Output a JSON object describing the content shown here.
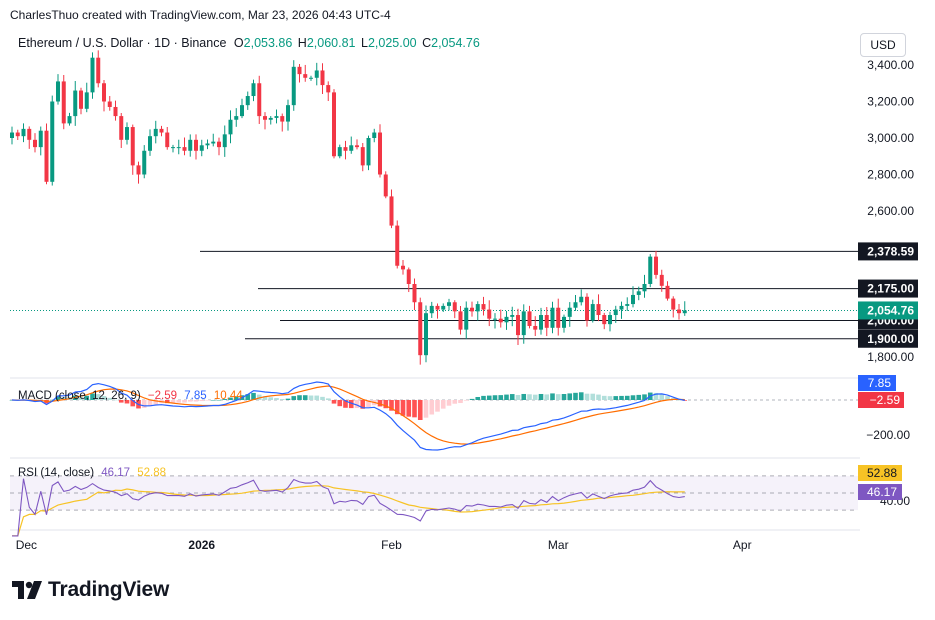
{
  "credit": "CharlesThuo created with TradingView.com, Mar 23, 2026 04:43 UTC-4",
  "header": {
    "symbol": "Ethereum / U.S. Dollar · 1D · Binance",
    "o_label": "O",
    "o_value": "2,053.86",
    "h_label": "H",
    "h_value": "2,060.81",
    "l_label": "L",
    "l_value": "2,025.00",
    "c_label": "C",
    "c_value": "2,054.76"
  },
  "currency_button": "USD",
  "price_axis_ticks": [
    "3,400.00",
    "3,200.00",
    "3,000.00",
    "2,800.00",
    "2,600.00",
    "1,800.00"
  ],
  "time_axis_ticks": [
    "Dec",
    "2026",
    "Feb",
    "Mar",
    "Apr"
  ],
  "horizontal_levels": [
    {
      "label": "2,378.59"
    },
    {
      "label": "2,175.00"
    },
    {
      "label": "2,000.00"
    },
    {
      "label": "1,900.00"
    }
  ],
  "current_price_label": "2,054.76",
  "macd": {
    "label": "MACD (close, 12, 26, 9)",
    "histogram_value": "−2.59",
    "macd_value": "7.85",
    "signal_value": "10.44",
    "axis_tick": "−200.00",
    "badge_macd": "7.85",
    "badge_hist": "−2.59"
  },
  "rsi": {
    "label": "RSI (14, close)",
    "rsi_value": "46.17",
    "ma_value": "52.88",
    "axis_tick": "40.00",
    "badge_ma": "52.88",
    "badge_rsi": "46.17"
  },
  "brand": "TradingView",
  "colors": {
    "up": "#089981",
    "down": "#f23645",
    "macd": "#2962ff",
    "signal": "#ff6d00",
    "rsi": "#7e57c2",
    "rsi_ma": "#f7c325",
    "badge_dark": "#131722"
  },
  "chart_data": {
    "type": "candlestick",
    "title": "Ethereum / U.S. Dollar · 1D · Binance",
    "ylim": [
      1750,
      3470
    ],
    "closes": [
      3030,
      3010,
      3050,
      2990,
      2950,
      3040,
      2760,
      3200,
      3310,
      3080,
      3120,
      3260,
      3160,
      3250,
      3440,
      3300,
      3200,
      3170,
      3120,
      2990,
      3060,
      2850,
      2800,
      2930,
      3010,
      3050,
      3030,
      2950,
      2950,
      2950,
      2930,
      2990,
      2930,
      2960,
      2970,
      2980,
      2950,
      3020,
      3100,
      3120,
      3180,
      3230,
      3300,
      3120,
      3100,
      3110,
      3120,
      3090,
      3180,
      3390,
      3350,
      3330,
      3330,
      3370,
      3290,
      3250,
      2900,
      2950,
      2930,
      2960,
      2950,
      2850,
      3000,
      3030,
      2800,
      2680,
      2520,
      2300,
      2280,
      2200,
      2100,
      1810,
      2040,
      2080,
      2060,
      2080,
      2100,
      2050,
      1950,
      2070,
      2050,
      2090,
      2060,
      2010,
      2010,
      1990,
      2020,
      2030,
      1920,
      2050,
      1970,
      1950,
      2030,
      1960,
      2070,
      1960,
      2020,
      2070,
      2100,
      2130,
      2000,
      2090,
      2030,
      1980,
      2030,
      2060,
      2080,
      2090,
      2140,
      2160,
      2200,
      2350,
      2250,
      2190,
      2120,
      2060,
      2040,
      2055
    ],
    "levels": [
      2378.59,
      2175.0,
      2000.0,
      1900.0
    ],
    "macd_last": {
      "histogram": -2.59,
      "macd": 7.85,
      "signal": 10.44
    },
    "rsi_last": {
      "rsi": 46.17,
      "ma": 52.88
    },
    "x_ticks": [
      "Dec",
      "2026",
      "Feb",
      "Mar",
      "Apr"
    ]
  }
}
